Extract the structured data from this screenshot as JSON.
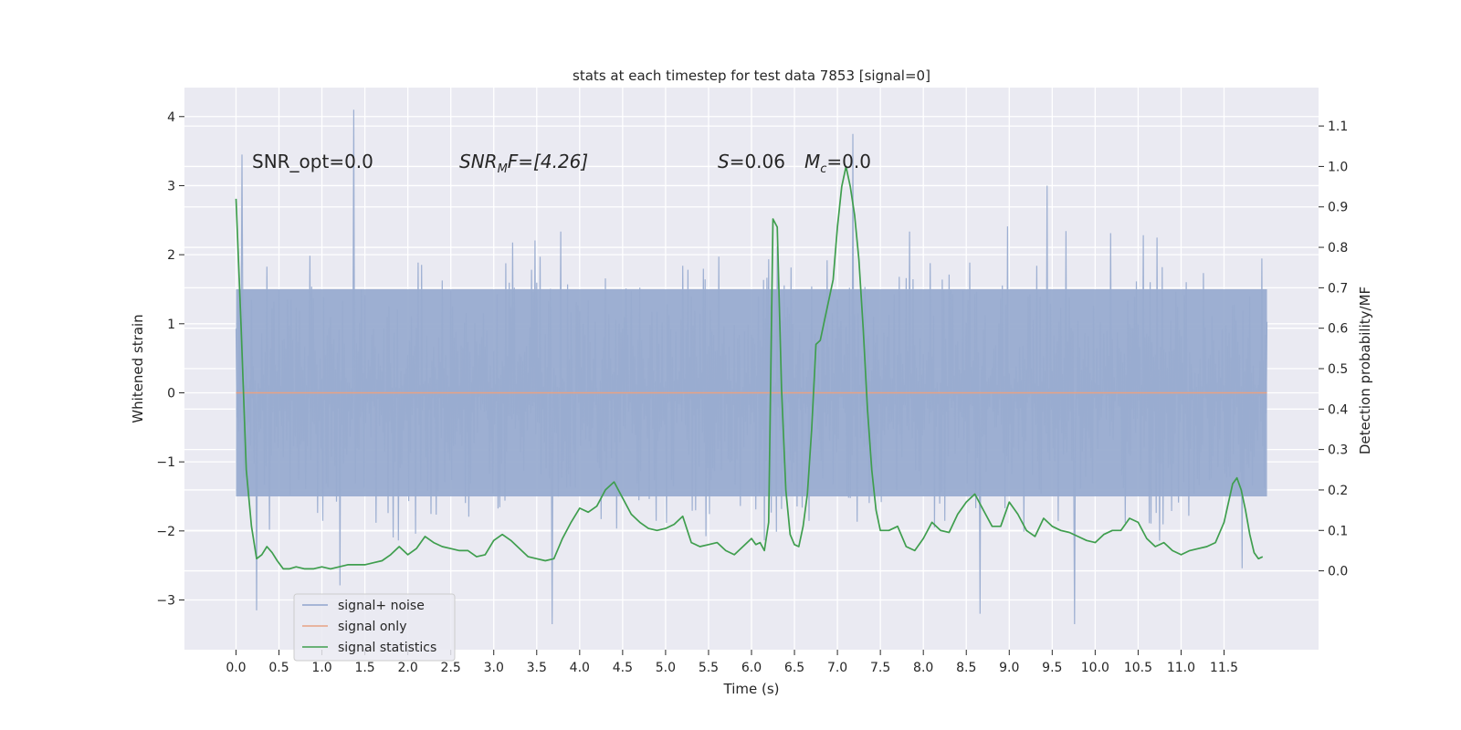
{
  "chart_data": {
    "type": "line",
    "title": "stats at each timestep for test data 7853 [signal=0]",
    "xlabel": "Time (s)",
    "ylabel_left": "Whitened strain",
    "ylabel_right": "Detection probability/MF",
    "xlim": [
      -0.6,
      12.6
    ],
    "ylim_left": [
      -3.72,
      4.42
    ],
    "ylim_right": [
      -0.195,
      1.195
    ],
    "x_ticks": [
      "0.0",
      "0.5",
      "1.0",
      "1.5",
      "2.0",
      "2.5",
      "3.0",
      "3.5",
      "4.0",
      "4.5",
      "5.0",
      "5.5",
      "6.0",
      "6.5",
      "7.0",
      "7.5",
      "8.0",
      "8.5",
      "9.0",
      "9.5",
      "10.0",
      "10.5",
      "11.0",
      "11.5"
    ],
    "y_left_ticks": [
      {
        "v": 4,
        "label": "4"
      },
      {
        "v": 3,
        "label": "3"
      },
      {
        "v": 2,
        "label": "2"
      },
      {
        "v": 1,
        "label": "1"
      },
      {
        "v": 0,
        "label": "0"
      },
      {
        "v": -1,
        "label": "−1"
      },
      {
        "v": -2,
        "label": "−2"
      },
      {
        "v": -3,
        "label": "−3"
      }
    ],
    "y_right_ticks": [
      "0.0",
      "0.1",
      "0.2",
      "0.3",
      "0.4",
      "0.5",
      "0.6",
      "0.7",
      "0.8",
      "0.9",
      "1.0",
      "1.1"
    ],
    "annotations": {
      "snr_opt": "SNR_opt=0.0",
      "snr_mf_sym": "SNR",
      "snr_mf_sub": "M",
      "snr_mf_rest": "F=[4.26]",
      "s_sym": "S",
      "s_rest": "=0.06",
      "mc_sym": "M",
      "mc_sub": "c",
      "mc_rest": "=0.0"
    },
    "legend": {
      "position": "lower-left",
      "entries": [
        {
          "label": "signal+ noise",
          "color": "#8fa3cc"
        },
        {
          "label": "signal only",
          "color": "#e8a283"
        },
        {
          "label": "signal statistics",
          "color": "#3f9e4e"
        }
      ]
    },
    "series": [
      {
        "name": "signal+ noise",
        "axis": "left",
        "color": "#99acd0",
        "x_range": [
          0.0,
          12.0
        ],
        "sample_count": 1200,
        "noise_seed": 7853,
        "body_band": [
          -1.5,
          1.5
        ],
        "extremes": [
          {
            "x": 1.37,
            "y": 4.1
          },
          {
            "x": 0.07,
            "y": 3.45
          },
          {
            "x": 7.18,
            "y": 3.75
          },
          {
            "x": 0.24,
            "y": -3.15
          },
          {
            "x": 3.68,
            "y": -3.35
          },
          {
            "x": 8.66,
            "y": -3.2
          },
          {
            "x": 9.76,
            "y": -3.35
          }
        ]
      },
      {
        "name": "signal only",
        "axis": "left",
        "color": "#e8a283",
        "x": [
          0.0,
          12.0
        ],
        "y": [
          0,
          0
        ]
      },
      {
        "name": "signal statistics",
        "axis": "right",
        "color": "#3f9e4e",
        "x": [
          0.0,
          0.06,
          0.12,
          0.18,
          0.24,
          0.3,
          0.36,
          0.42,
          0.48,
          0.55,
          0.62,
          0.7,
          0.8,
          0.9,
          1.0,
          1.1,
          1.2,
          1.3,
          1.4,
          1.5,
          1.6,
          1.7,
          1.8,
          1.9,
          2.0,
          2.1,
          2.2,
          2.3,
          2.4,
          2.5,
          2.6,
          2.7,
          2.8,
          2.9,
          3.0,
          3.1,
          3.2,
          3.3,
          3.4,
          3.5,
          3.6,
          3.7,
          3.8,
          3.9,
          4.0,
          4.1,
          4.2,
          4.3,
          4.4,
          4.5,
          4.6,
          4.7,
          4.8,
          4.9,
          5.0,
          5.1,
          5.2,
          5.3,
          5.4,
          5.5,
          5.6,
          5.7,
          5.8,
          5.9,
          6.0,
          6.05,
          6.1,
          6.15,
          6.2,
          6.25,
          6.3,
          6.35,
          6.4,
          6.45,
          6.5,
          6.55,
          6.6,
          6.65,
          6.7,
          6.75,
          6.8,
          6.85,
          6.9,
          6.95,
          7.0,
          7.05,
          7.1,
          7.15,
          7.2,
          7.25,
          7.3,
          7.35,
          7.4,
          7.45,
          7.5,
          7.6,
          7.7,
          7.8,
          7.9,
          8.0,
          8.1,
          8.2,
          8.3,
          8.4,
          8.5,
          8.6,
          8.7,
          8.8,
          8.9,
          9.0,
          9.1,
          9.2,
          9.3,
          9.4,
          9.5,
          9.6,
          9.7,
          9.8,
          9.9,
          10.0,
          10.1,
          10.2,
          10.3,
          10.4,
          10.5,
          10.6,
          10.7,
          10.8,
          10.9,
          11.0,
          11.1,
          11.2,
          11.3,
          11.4,
          11.5,
          11.6,
          11.65,
          11.7,
          11.75,
          11.8,
          11.85,
          11.9,
          11.95
        ],
        "y": [
          0.92,
          0.6,
          0.25,
          0.11,
          0.03,
          0.04,
          0.06,
          0.045,
          0.025,
          0.005,
          0.005,
          0.01,
          0.005,
          0.005,
          0.01,
          0.005,
          0.01,
          0.015,
          0.015,
          0.015,
          0.02,
          0.025,
          0.04,
          0.06,
          0.04,
          0.055,
          0.085,
          0.07,
          0.06,
          0.055,
          0.05,
          0.05,
          0.035,
          0.04,
          0.075,
          0.09,
          0.075,
          0.055,
          0.035,
          0.03,
          0.025,
          0.03,
          0.08,
          0.12,
          0.155,
          0.145,
          0.16,
          0.2,
          0.22,
          0.18,
          0.14,
          0.12,
          0.105,
          0.1,
          0.105,
          0.115,
          0.135,
          0.07,
          0.06,
          0.065,
          0.07,
          0.05,
          0.04,
          0.06,
          0.08,
          0.065,
          0.07,
          0.05,
          0.12,
          0.87,
          0.85,
          0.45,
          0.2,
          0.09,
          0.065,
          0.06,
          0.11,
          0.19,
          0.35,
          0.56,
          0.57,
          0.62,
          0.67,
          0.72,
          0.85,
          0.95,
          1.0,
          0.95,
          0.88,
          0.77,
          0.6,
          0.4,
          0.25,
          0.15,
          0.1,
          0.1,
          0.11,
          0.06,
          0.05,
          0.08,
          0.12,
          0.1,
          0.095,
          0.14,
          0.17,
          0.19,
          0.15,
          0.11,
          0.11,
          0.17,
          0.14,
          0.1,
          0.085,
          0.13,
          0.11,
          0.1,
          0.095,
          0.085,
          0.075,
          0.07,
          0.09,
          0.1,
          0.1,
          0.13,
          0.12,
          0.08,
          0.06,
          0.07,
          0.05,
          0.04,
          0.05,
          0.055,
          0.06,
          0.07,
          0.12,
          0.215,
          0.23,
          0.2,
          0.15,
          0.09,
          0.045,
          0.03,
          0.035
        ]
      }
    ]
  }
}
